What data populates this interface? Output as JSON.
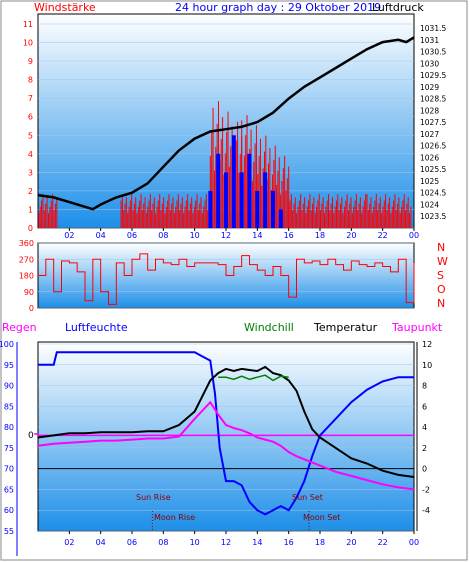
{
  "colors": {
    "red": "#ff0000",
    "blue": "#0000ff",
    "black": "#000000",
    "green": "#008000",
    "magenta": "#ff00ff",
    "darkred": "#8b0000",
    "plot_top": "#ffffff",
    "plot_bottom": "#1e8fe8"
  },
  "header": {
    "wind_label": "Windstärke",
    "title": "24 hour graph day : 29 Oktober 2019",
    "pressure_label": "Luftdruck"
  },
  "bottom_header": {
    "rain_label": "Regen",
    "humidity_label": "Luftfeuchte",
    "windchill_label": "Windchill",
    "temperature_label": "Temperatur",
    "dewpoint_label": "Taupunkt"
  },
  "direction_letters": [
    "N",
    "W",
    "S",
    "O",
    "N"
  ],
  "time_ticks": [
    "02",
    "04",
    "06",
    "08",
    "10",
    "12",
    "14",
    "16",
    "18",
    "20",
    "22",
    "00"
  ],
  "annotations": {
    "sun_rise": "Sun Rise",
    "moon_rise": "Moon Rise",
    "sun_set": "Sun Set",
    "moon_set": "Moon Set"
  },
  "rain_marker": "0",
  "chart_data": [
    {
      "type": "line",
      "name": "wind-pressure",
      "x_ticks": [
        "02",
        "04",
        "06",
        "08",
        "10",
        "12",
        "14",
        "16",
        "18",
        "20",
        "22",
        "00"
      ],
      "xlim": [
        0,
        24
      ],
      "wind_ylim": [
        0,
        11
      ],
      "wind_ticks": [
        "0",
        "1",
        "2",
        "3",
        "4",
        "5",
        "6",
        "7",
        "8",
        "9",
        "10",
        "11"
      ],
      "pressure_ylim": [
        1023,
        1031.5
      ],
      "pressure_ticks": [
        "1023.5",
        "1024",
        "1024.5",
        "1025",
        "1025.5",
        "1026",
        "1026.5",
        "1027",
        "1027.5",
        "1028",
        "1028.5",
        "1029",
        "1029.5",
        "1030",
        "1030.5",
        "1031",
        "1031.5"
      ],
      "pressure": {
        "x": [
          0,
          1,
          2,
          3,
          3.5,
          4,
          5,
          6,
          7,
          8,
          9,
          10,
          11,
          12,
          13,
          14,
          15,
          16,
          17,
          18,
          19,
          20,
          21,
          22,
          23,
          23.5,
          24
        ],
        "y": [
          1024.4,
          1024.3,
          1024.1,
          1023.9,
          1023.8,
          1024.0,
          1024.3,
          1024.5,
          1024.9,
          1025.6,
          1026.3,
          1026.8,
          1027.1,
          1027.2,
          1027.3,
          1027.5,
          1027.9,
          1028.5,
          1029.0,
          1029.4,
          1029.8,
          1030.2,
          1030.6,
          1030.9,
          1031.0,
          1030.9,
          1031.1
        ]
      },
      "wind_gust": {
        "segments": [
          {
            "x": [
              0.05,
              1.2
            ],
            "y": [
              2,
              2
            ]
          },
          {
            "x": [
              5.3,
              11.0
            ],
            "y": [
              2,
              2
            ]
          },
          {
            "x": [
              11.0,
              13.0
            ],
            "y": [
              8,
              6
            ]
          },
          {
            "x": [
              13.0,
              16.0
            ],
            "y": [
              7,
              4
            ]
          },
          {
            "x": [
              16.0,
              21.0
            ],
            "y": [
              2,
              2
            ]
          },
          {
            "x": [
              21.0,
              23.8
            ],
            "y": [
              2,
              2
            ]
          }
        ]
      },
      "wind_avg": {
        "x": [
          11.0,
          11.5,
          12.0,
          12.5,
          13.0,
          13.5,
          14.0,
          14.5,
          15.0,
          15.5,
          16.0
        ],
        "y": [
          2,
          4,
          3,
          5,
          3,
          4,
          2,
          3,
          2,
          1,
          0
        ]
      }
    },
    {
      "type": "line",
      "name": "wind-direction",
      "x_ticks": [
        "02",
        "04",
        "06",
        "08",
        "10",
        "12",
        "14",
        "16",
        "18",
        "20",
        "22",
        "00"
      ],
      "xlim": [
        0,
        24
      ],
      "ylim": [
        0,
        360
      ],
      "y_ticks": [
        "0",
        "90",
        "180",
        "270",
        "360"
      ],
      "direction": {
        "x": [
          0,
          0.5,
          1,
          1.5,
          2,
          2.5,
          3,
          3.5,
          4,
          4.5,
          5,
          5.5,
          6,
          6.5,
          7,
          7.5,
          8,
          8.5,
          9,
          9.5,
          10,
          10.5,
          11,
          11.5,
          12,
          12.5,
          13,
          13.5,
          14,
          14.5,
          15,
          15.5,
          16,
          16.5,
          17,
          17.5,
          18,
          18.5,
          19,
          19.5,
          20,
          20.5,
          21,
          21.5,
          22,
          22.5,
          23,
          23.5,
          24
        ],
        "y": [
          180,
          270,
          90,
          260,
          250,
          200,
          40,
          270,
          90,
          20,
          250,
          180,
          270,
          300,
          210,
          270,
          250,
          240,
          270,
          230,
          250,
          250,
          250,
          240,
          180,
          230,
          290,
          240,
          210,
          180,
          230,
          180,
          60,
          270,
          250,
          260,
          240,
          270,
          240,
          210,
          260,
          240,
          230,
          250,
          230,
          200,
          270,
          30,
          250
        ]
      }
    },
    {
      "type": "line",
      "name": "humidity-temperature",
      "x_ticks": [
        "02",
        "04",
        "06",
        "08",
        "10",
        "12",
        "14",
        "16",
        "18",
        "20",
        "22",
        "00"
      ],
      "xlim": [
        0,
        24
      ],
      "humidity_ylim": [
        55,
        100
      ],
      "humidity_ticks": [
        "55",
        "60",
        "65",
        "70",
        "75",
        "80",
        "85",
        "90",
        "95",
        "100"
      ],
      "temperature_ylim": [
        -6,
        12
      ],
      "temperature_ticks": [
        "-4",
        "-2",
        "0",
        "2",
        "4",
        "6",
        "8",
        "10",
        "12"
      ],
      "humidity": {
        "x": [
          0,
          1,
          1.2,
          2,
          3,
          4,
          5,
          6,
          7,
          8,
          9,
          10,
          10.5,
          11,
          11.3,
          11.6,
          12,
          12.5,
          13,
          13.5,
          14,
          14.5,
          15,
          15.5,
          16,
          16.5,
          17,
          17.5,
          18,
          19,
          20,
          21,
          22,
          23,
          24
        ],
        "y": [
          95,
          95,
          98,
          98,
          98,
          98,
          98,
          98,
          98,
          98,
          98,
          98,
          97,
          96,
          88,
          75,
          67,
          67,
          66,
          62,
          60,
          59,
          60,
          61,
          60,
          63,
          67,
          73,
          78,
          82,
          86,
          89,
          91,
          92,
          92
        ]
      },
      "temperature": {
        "x": [
          0,
          1,
          2,
          3,
          4,
          5,
          6,
          7,
          8,
          9,
          10,
          10.5,
          11,
          11.5,
          12,
          12.5,
          13,
          13.5,
          14,
          14.5,
          15,
          15.5,
          16,
          16.5,
          17,
          17.5,
          18,
          19,
          20,
          21,
          22,
          23,
          24
        ],
        "y": [
          3.0,
          3.2,
          3.4,
          3.4,
          3.5,
          3.5,
          3.5,
          3.6,
          3.6,
          4.2,
          5.5,
          7.0,
          8.5,
          9.2,
          9.6,
          9.4,
          9.6,
          9.5,
          9.4,
          9.8,
          9.2,
          9.0,
          8.5,
          7.5,
          5.5,
          3.8,
          3.0,
          2.0,
          1.0,
          0.5,
          -0.2,
          -0.6,
          -0.8
        ]
      },
      "windchill": {
        "x": [
          11.5,
          12,
          12.5,
          13,
          13.5,
          14,
          14.5,
          15,
          15.5,
          16
        ],
        "y": [
          8.8,
          8.8,
          8.6,
          8.9,
          8.6,
          8.8,
          9.0,
          8.5,
          8.9,
          8.8
        ]
      },
      "dewpoint": {
        "x": [
          0,
          1,
          2,
          3,
          4,
          5,
          6,
          7,
          8,
          9,
          10,
          10.5,
          11,
          11.5,
          12,
          12.5,
          13,
          13.5,
          14,
          14.5,
          15,
          15.5,
          16,
          16.5,
          17,
          18,
          19,
          20,
          21,
          22,
          23,
          24
        ],
        "y": [
          2.2,
          2.4,
          2.5,
          2.6,
          2.7,
          2.7,
          2.8,
          2.9,
          2.9,
          3.1,
          4.8,
          5.6,
          6.4,
          5.2,
          4.2,
          3.9,
          3.7,
          3.4,
          3.0,
          2.8,
          2.6,
          2.2,
          1.6,
          1.2,
          0.9,
          0.3,
          -0.3,
          -0.7,
          -1.1,
          -1.5,
          -1.8,
          -2.0
        ]
      },
      "rain_line": 78,
      "reference_temperature": 0,
      "sun_rise": 7.3,
      "moon_rise": 7.3,
      "sun_set": 17.0,
      "moon_set": 17.3
    }
  ]
}
